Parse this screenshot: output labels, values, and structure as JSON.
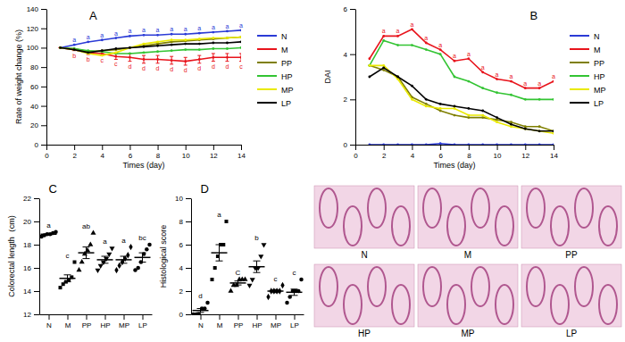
{
  "chart_data": [
    {
      "type": "line",
      "title": "A",
      "x_label": "Times (day)",
      "y_label": "Rate of weight change (%)",
      "x": [
        1,
        2,
        3,
        4,
        5,
        6,
        7,
        8,
        9,
        10,
        11,
        12,
        13,
        14
      ],
      "xlim": [
        0,
        14
      ],
      "xticks": [
        0,
        2,
        4,
        6,
        8,
        10,
        12,
        14
      ],
      "ylim": [
        0,
        140
      ],
      "yticks": [
        0,
        20,
        40,
        60,
        80,
        100,
        120,
        140
      ],
      "legend": "right",
      "series": [
        {
          "name": "N",
          "color": "#2b3bd6",
          "values": [
            100,
            103,
            106,
            108,
            110,
            112,
            113,
            113,
            114,
            114,
            115,
            116,
            117,
            118
          ],
          "annotations": [
            null,
            "a",
            "a",
            "a",
            "a",
            "a",
            "a",
            "a",
            "a",
            "a",
            "a",
            "a",
            "a",
            "a"
          ]
        },
        {
          "name": "M",
          "color": "#e8141c",
          "values": [
            100,
            98,
            95,
            94,
            91,
            90,
            88,
            88,
            87,
            86,
            88,
            90,
            90,
            90
          ],
          "errors": [
            0,
            1,
            2,
            2,
            3,
            4,
            4,
            4,
            4,
            4,
            4,
            4,
            4,
            4
          ],
          "annotations": [
            null,
            "b",
            "b",
            "c",
            "c",
            "d",
            "d",
            "d",
            "d",
            "d",
            "d",
            "d",
            "d",
            "c"
          ]
        },
        {
          "name": "PP",
          "color": "#7f7f00",
          "values": [
            100,
            99,
            96,
            97,
            98,
            100,
            102,
            104,
            106,
            107,
            108,
            109,
            110,
            111
          ]
        },
        {
          "name": "HP",
          "color": "#33c433",
          "values": [
            100,
            99,
            97,
            96,
            94,
            94,
            95,
            96,
            97,
            98,
            98,
            99,
            99,
            100
          ]
        },
        {
          "name": "MP",
          "color": "#eaea00",
          "values": [
            100,
            98,
            94,
            92,
            95,
            100,
            104,
            106,
            108,
            108,
            109,
            110,
            110,
            111
          ]
        },
        {
          "name": "LP",
          "color": "#000000",
          "values": [
            100,
            98,
            95,
            97,
            99,
            100,
            101,
            102,
            103,
            104,
            104,
            105,
            105,
            106
          ]
        }
      ]
    },
    {
      "type": "line",
      "title": "B",
      "x_label": "Times (day)",
      "y_label": "DAI",
      "x": [
        1,
        2,
        3,
        4,
        5,
        6,
        7,
        8,
        9,
        10,
        11,
        12,
        13,
        14
      ],
      "xlim": [
        0,
        14
      ],
      "xticks": [
        0,
        2,
        4,
        6,
        8,
        10,
        12,
        14
      ],
      "ylim": [
        0,
        6
      ],
      "yticks": [
        0,
        2,
        4,
        6
      ],
      "legend": "right",
      "series": [
        {
          "name": "N",
          "color": "#2b3bd6",
          "values": [
            0,
            0,
            0,
            0,
            0,
            0.05,
            0,
            0,
            0,
            0,
            0,
            0,
            0,
            0
          ]
        },
        {
          "name": "M",
          "color": "#e8141c",
          "values": [
            3.8,
            4.8,
            4.8,
            5.1,
            4.5,
            4.2,
            3.7,
            3.8,
            3.2,
            2.9,
            2.8,
            2.5,
            2.5,
            2.8
          ],
          "annotations": [
            null,
            "a",
            "a",
            "a",
            "a",
            "a",
            "a",
            "a",
            "a",
            "a",
            "a",
            "a",
            "a",
            "a"
          ]
        },
        {
          "name": "PP",
          "color": "#7f7f00",
          "values": [
            3.5,
            3.3,
            3.0,
            2.1,
            1.8,
            1.5,
            1.3,
            1.2,
            1.2,
            1.1,
            1.0,
            0.8,
            0.8,
            0.6
          ]
        },
        {
          "name": "HP",
          "color": "#33c433",
          "values": [
            3.5,
            4.6,
            4.4,
            4.4,
            4.2,
            4.0,
            3.0,
            2.8,
            2.5,
            2.3,
            2.2,
            2.0,
            2.0,
            2.0
          ]
        },
        {
          "name": "MP",
          "color": "#eaea00",
          "values": [
            3.5,
            3.5,
            2.9,
            2.0,
            1.7,
            1.6,
            1.6,
            1.3,
            1.3,
            1.0,
            0.8,
            0.7,
            0.6,
            0.5
          ]
        },
        {
          "name": "LP",
          "color": "#000000",
          "values": [
            3.0,
            3.4,
            3.0,
            2.6,
            2.0,
            1.8,
            1.7,
            1.6,
            1.5,
            1.2,
            0.9,
            0.7,
            0.6,
            0.6
          ]
        }
      ]
    },
    {
      "type": "dot",
      "title": "C",
      "y_label": "Colorectal length（cm)",
      "color": "#000000",
      "ylim": [
        12,
        22
      ],
      "yticks": [
        12,
        14,
        16,
        18,
        20,
        22
      ],
      "series": [
        {
          "name": "N",
          "marker": "circle",
          "values": [
            18.7,
            18.8,
            18.9,
            18.9,
            19.0,
            19.1
          ],
          "mean": 18.9,
          "se": 0.06,
          "annotation": "a"
        },
        {
          "name": "M",
          "marker": "square",
          "values": [
            14.3,
            14.6,
            14.8,
            15.0,
            15.2,
            16.5
          ],
          "mean": 15.1,
          "se": 0.3,
          "annotation": "c"
        },
        {
          "name": "PP",
          "marker": "triangle-up",
          "values": [
            15.8,
            16.5,
            17.2,
            17.5,
            18.0,
            19.0
          ],
          "mean": 17.3,
          "se": 0.5,
          "annotation": "ab"
        },
        {
          "name": "HP",
          "marker": "triangle-down",
          "values": [
            15.8,
            16.2,
            16.5,
            16.8,
            17.2,
            17.7
          ],
          "mean": 16.7,
          "se": 0.3,
          "annotation": "a"
        },
        {
          "name": "MP",
          "marker": "diamond",
          "values": [
            15.8,
            16.2,
            16.5,
            16.8,
            17.1,
            17.8
          ],
          "mean": 16.7,
          "se": 0.3,
          "annotation": "a"
        },
        {
          "name": "LP",
          "marker": "circle",
          "values": [
            15.8,
            16.0,
            16.5,
            17.2,
            17.6,
            18.0
          ],
          "mean": 16.9,
          "se": 0.4,
          "annotation": "bc"
        }
      ]
    },
    {
      "type": "dot",
      "title": "D",
      "y_label": "Histological score",
      "color": "#000000",
      "ylim": [
        0,
        10
      ],
      "yticks": [
        0,
        2,
        4,
        6,
        8,
        10
      ],
      "series": [
        {
          "name": "N",
          "marker": "circle",
          "values": [
            0,
            0,
            0,
            0.5,
            0.5,
            1
          ],
          "mean": 0.33,
          "se": 0.17,
          "annotation": "d"
        },
        {
          "name": "M",
          "marker": "square",
          "values": [
            3,
            4,
            5,
            6,
            6,
            8
          ],
          "mean": 5.3,
          "se": 0.7,
          "annotation": "a"
        },
        {
          "name": "PP",
          "marker": "triangle-up",
          "values": [
            2,
            2.5,
            2.5,
            3,
            3,
            3
          ],
          "mean": 2.7,
          "se": 0.17,
          "annotation": "C"
        },
        {
          "name": "HP",
          "marker": "triangle-down",
          "values": [
            2.5,
            3,
            4,
            4,
            5,
            6
          ],
          "mean": 4.1,
          "se": 0.5,
          "annotation": "b"
        },
        {
          "name": "MP",
          "marker": "diamond",
          "values": [
            1.5,
            2,
            2,
            2,
            2,
            2.5
          ],
          "mean": 2,
          "se": 0.13,
          "annotation": "c"
        },
        {
          "name": "LP",
          "marker": "circle",
          "values": [
            1,
            1.5,
            2,
            2,
            2,
            3
          ],
          "mean": 1.9,
          "se": 0.27,
          "annotation": "c"
        }
      ]
    }
  ],
  "images": {
    "labels": [
      "N",
      "M",
      "PP",
      "HP",
      "MP",
      "LP"
    ]
  }
}
